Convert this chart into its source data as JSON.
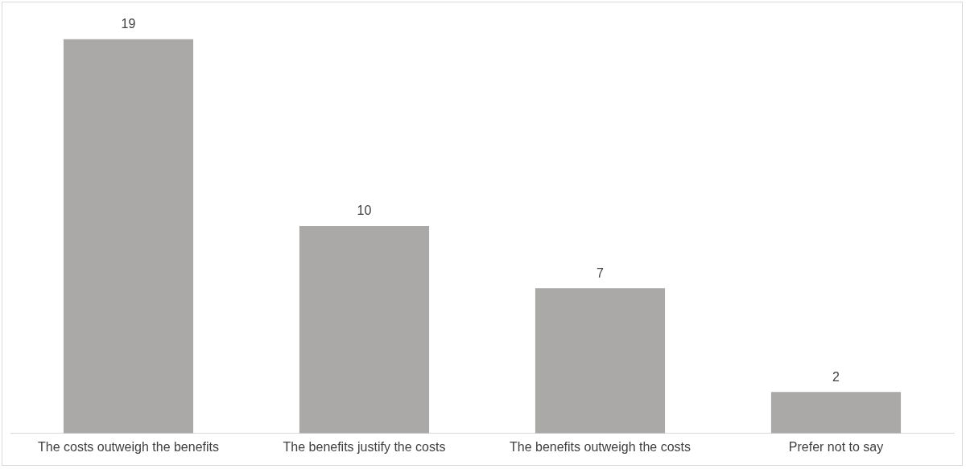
{
  "chart_data": {
    "type": "bar",
    "categories": [
      "The costs outweigh the benefits",
      "The benefits justify the costs",
      "The benefits outweigh the costs",
      "Prefer not to say"
    ],
    "values": [
      19,
      10,
      7,
      2
    ],
    "color": "#aaa9a7",
    "data_labels": true,
    "grid": false,
    "legend": false
  }
}
